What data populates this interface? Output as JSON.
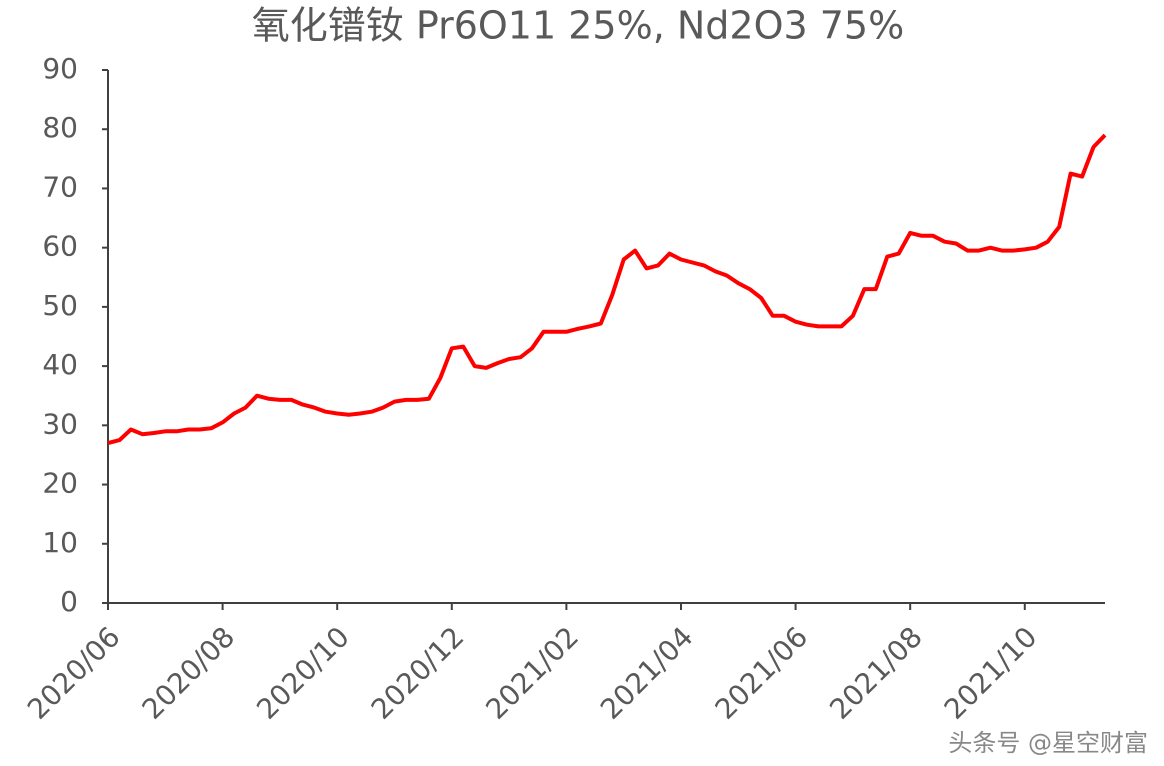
{
  "chart_data": {
    "type": "line",
    "title": "氧化镨钕 Pr6O11 25%, Nd2O3 75%",
    "categories": [
      "2020/06",
      null,
      null,
      null,
      null,
      null,
      null,
      null,
      null,
      null,
      "2020/08",
      null,
      null,
      null,
      null,
      null,
      null,
      null,
      null,
      null,
      "2020/10",
      null,
      null,
      null,
      null,
      null,
      null,
      null,
      null,
      null,
      "2020/12",
      null,
      null,
      null,
      null,
      null,
      null,
      null,
      null,
      null,
      "2021/02",
      null,
      null,
      null,
      null,
      null,
      null,
      null,
      null,
      null,
      "2021/04",
      null,
      null,
      null,
      null,
      null,
      null,
      null,
      null,
      null,
      "2021/06",
      null,
      null,
      null,
      null,
      null,
      null,
      null,
      null,
      null,
      "2021/08",
      null,
      null,
      null,
      null,
      null,
      null,
      null,
      null,
      null,
      "2021/10",
      null,
      null,
      null,
      null,
      null,
      null,
      null
    ],
    "values": [
      27,
      27.5,
      29.3,
      28.5,
      28.7,
      29,
      29,
      29.3,
      29.3,
      29.5,
      30.5,
      32,
      33,
      35,
      34.5,
      34.3,
      34.3,
      33.5,
      33,
      32.3,
      32,
      31.8,
      32,
      32.3,
      33,
      34,
      34.3,
      34.3,
      34.5,
      38,
      43,
      43.3,
      40,
      39.7,
      40.5,
      41.2,
      41.5,
      43,
      45.8,
      45.8,
      45.8,
      46.3,
      46.7,
      47.2,
      52,
      58,
      59.5,
      56.5,
      57,
      59,
      58,
      57.5,
      57,
      56,
      55.3,
      54,
      53,
      51.5,
      48.5,
      48.5,
      47.5,
      47,
      46.7,
      46.7,
      46.7,
      48.5,
      53,
      53,
      58.5,
      59,
      62.5,
      62,
      62,
      61,
      60.7,
      59.5,
      59.5,
      60,
      59.5,
      59.5,
      59.7,
      60,
      61,
      63.5,
      72.5,
      72,
      77,
      79
    ],
    "color": "#ff0000",
    "ylim": [
      0,
      90
    ],
    "yticks": [
      0,
      10,
      20,
      30,
      40,
      50,
      60,
      70,
      80,
      90
    ],
    "grid": false,
    "watermark": "头条号 @星空财富"
  }
}
